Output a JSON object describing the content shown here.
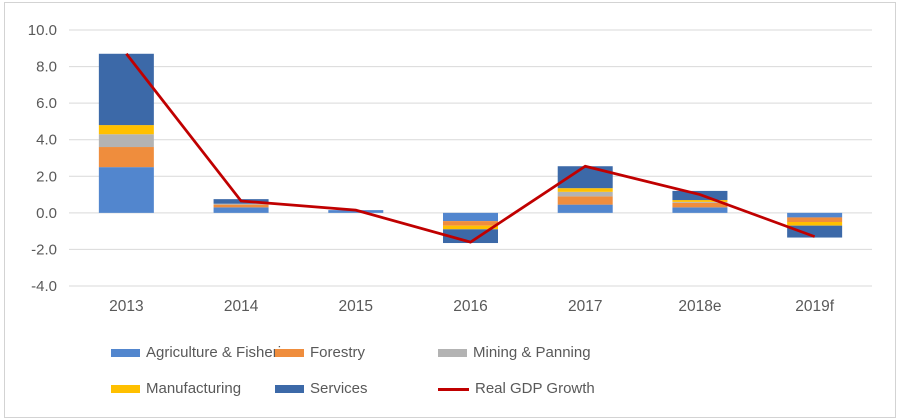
{
  "chart_data": {
    "type": "bar",
    "subtype": "stacked-column-with-line-overlay",
    "title": "",
    "xlabel": "",
    "ylabel": "",
    "categories": [
      "2013",
      "2014",
      "2015",
      "2016",
      "2017",
      "2018e",
      "2019f"
    ],
    "series": [
      {
        "name": "Agriculture & Fisheries",
        "color": "#5286CE",
        "values": [
          2.5,
          0.3,
          0.15,
          -0.45,
          0.45,
          0.3,
          -0.25
        ]
      },
      {
        "name": "Forestry",
        "color": "#EF8D3D",
        "values": [
          1.1,
          0.15,
          0,
          -0.25,
          0.45,
          0.25,
          -0.25
        ]
      },
      {
        "name": "Mining & Panning",
        "color": "#B3B3B3",
        "values": [
          0.7,
          0.05,
          0,
          0,
          0.25,
          0.05,
          0
        ]
      },
      {
        "name": "Manufacturing",
        "color": "#FFC000",
        "values": [
          0.5,
          0,
          0,
          -0.2,
          0.2,
          0.1,
          -0.2
        ]
      },
      {
        "name": "Services",
        "color": "#3C69A8",
        "values": [
          3.9,
          0.25,
          0,
          -0.75,
          1.2,
          0.5,
          -0.65
        ]
      }
    ],
    "line_series": {
      "name": "Real GDP Growth",
      "color": "#C00000",
      "values": [
        8.7,
        0.65,
        0.15,
        -1.6,
        2.55,
        1.0,
        -1.3
      ]
    },
    "stacked_totals": [
      8.7,
      0.75,
      0.15,
      -1.65,
      2.55,
      1.2,
      -1.35
    ],
    "ylim": [
      -4,
      10
    ],
    "ytick_step": 2,
    "ytick_labels": [
      "10.0",
      "8.0",
      "6.0",
      "4.0",
      "2.0",
      "0.0",
      "-2.0",
      "-4.0"
    ],
    "grid": true,
    "legend_position": "bottom",
    "legend_rows": [
      [
        "Agriculture & Fisheries",
        "Forestry",
        "Mining & Panning"
      ],
      [
        "Manufacturing",
        "Services",
        "Real GDP Growth"
      ]
    ]
  },
  "colors": {
    "background": "#FFFFFF",
    "gridline": "#D9D9D9",
    "axis_text": "#595959",
    "frame_border": "#D3D3D3"
  }
}
